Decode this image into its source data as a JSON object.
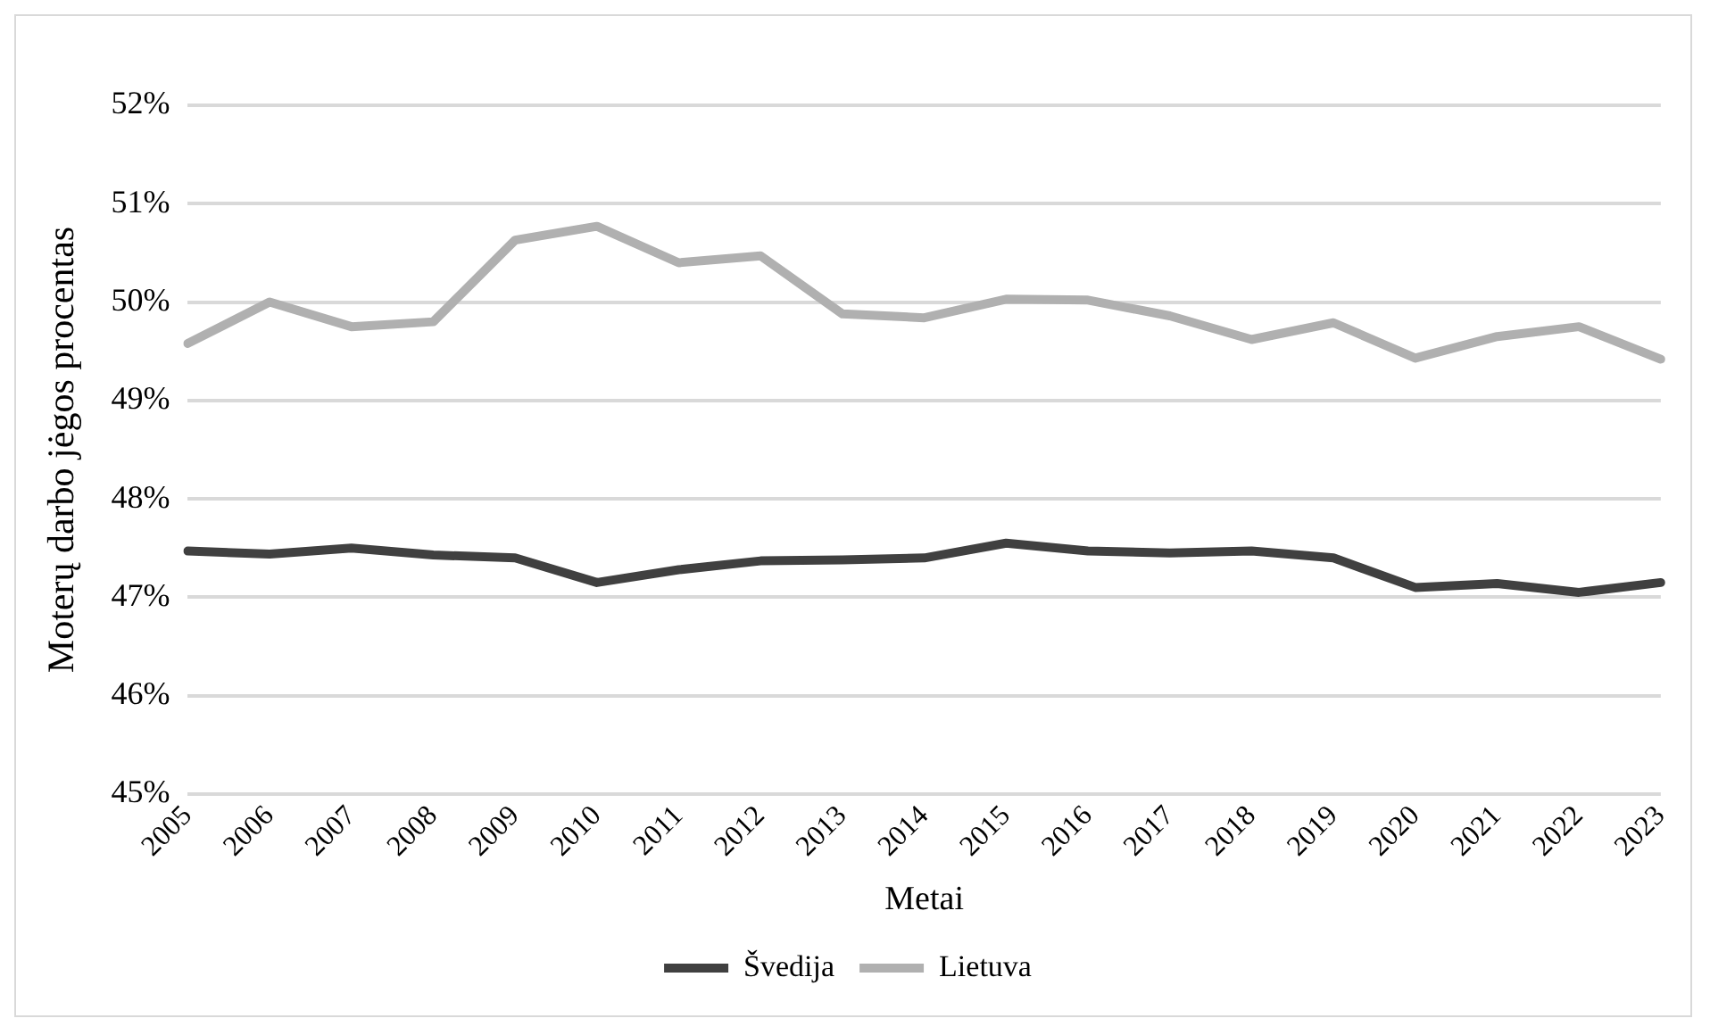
{
  "chart_data": {
    "type": "line",
    "xlabel": "Metai",
    "ylabel": "Moterų darbo jėgos procentas",
    "categories": [
      "2005",
      "2006",
      "2007",
      "2008",
      "2009",
      "2010",
      "2011",
      "2012",
      "2013",
      "2014",
      "2015",
      "2016",
      "2017",
      "2018",
      "2019",
      "2020",
      "2021",
      "2022",
      "2023"
    ],
    "series": [
      {
        "name": "Švedija",
        "color": "#404040",
        "values": [
          47.47,
          47.44,
          47.5,
          47.43,
          47.4,
          47.15,
          47.28,
          47.37,
          47.38,
          47.4,
          47.55,
          47.47,
          47.45,
          47.47,
          47.4,
          47.1,
          47.14,
          47.05,
          47.15
        ]
      },
      {
        "name": "Lietuva",
        "color": "#b0b0b0",
        "values": [
          49.58,
          50.0,
          49.75,
          49.8,
          50.63,
          50.77,
          50.4,
          50.47,
          49.88,
          49.84,
          50.03,
          50.02,
          49.86,
          49.62,
          49.79,
          49.43,
          49.65,
          49.75,
          49.42
        ]
      }
    ],
    "ylim": [
      45,
      52
    ],
    "yticks": [
      {
        "value": 45,
        "label": "45%"
      },
      {
        "value": 46,
        "label": "46%"
      },
      {
        "value": 47,
        "label": "47%"
      },
      {
        "value": 48,
        "label": "48%"
      },
      {
        "value": 49,
        "label": "49%"
      },
      {
        "value": 50,
        "label": "50%"
      },
      {
        "value": 51,
        "label": "51%"
      },
      {
        "value": 52,
        "label": "52%"
      }
    ],
    "grid": "y",
    "legend": "bottom",
    "marker": "none",
    "line_style": "solid"
  }
}
